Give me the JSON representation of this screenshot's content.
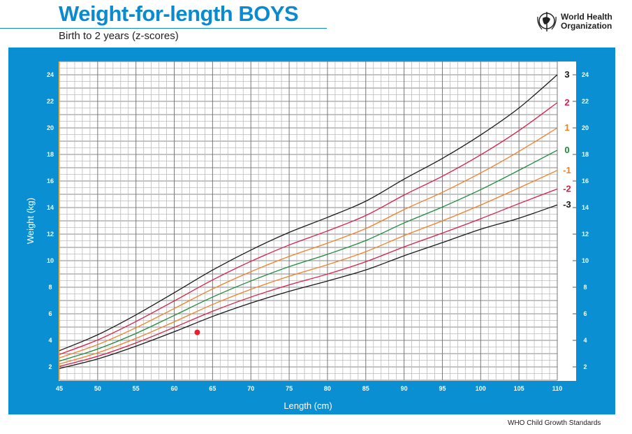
{
  "header": {
    "title": "Weight-for-length BOYS",
    "subtitle": "Birth to 2 years (z-scores)",
    "logo_text": "World Health Organization"
  },
  "footer": "WHO Child Growth Standards",
  "chart_data": {
    "type": "line",
    "xlabel": "Length (cm)",
    "ylabel": "Weight (kg)",
    "xlim": [
      45,
      110
    ],
    "ylim": [
      1,
      25
    ],
    "x_ticks": [
      45,
      50,
      55,
      60,
      65,
      70,
      75,
      80,
      85,
      90,
      95,
      100,
      105,
      110
    ],
    "y_ticks": [
      2,
      4,
      6,
      8,
      10,
      12,
      14,
      16,
      18,
      20,
      22,
      24
    ],
    "grid": true,
    "background": "#0a8fd2",
    "x": [
      45,
      50,
      55,
      60,
      65,
      70,
      75,
      80,
      85,
      90,
      95,
      100,
      105,
      110
    ],
    "series": [
      {
        "name": "3",
        "color": "#1a1a1a",
        "values": [
          3.22,
          4.42,
          5.92,
          7.59,
          9.29,
          10.8,
          12.13,
          13.26,
          14.48,
          16.14,
          17.7,
          19.47,
          21.5,
          24.0
        ]
      },
      {
        "name": "2",
        "color": "#d4204a",
        "values": [
          2.94,
          4.03,
          5.42,
          6.97,
          8.55,
          9.95,
          11.18,
          12.24,
          13.4,
          14.94,
          16.36,
          17.97,
          19.8,
          21.9
        ]
      },
      {
        "name": "1",
        "color": "#f07f2a",
        "values": [
          2.68,
          3.68,
          4.95,
          6.4,
          7.87,
          9.17,
          10.32,
          11.32,
          12.42,
          13.85,
          15.15,
          16.61,
          18.23,
          20.0
        ]
      },
      {
        "name": "0",
        "color": "#1d8a3c",
        "values": [
          2.44,
          3.35,
          4.52,
          5.88,
          7.26,
          8.47,
          9.55,
          10.48,
          11.52,
          12.84,
          14.04,
          15.35,
          16.81,
          18.32
        ]
      },
      {
        "name": "-1",
        "color": "#f07f2a",
        "values": [
          2.22,
          3.06,
          4.15,
          5.4,
          6.7,
          7.84,
          8.83,
          9.7,
          10.68,
          11.89,
          13.0,
          14.19,
          15.48,
          16.8
        ]
      },
      {
        "name": "-2",
        "color": "#d4204a",
        "values": [
          2.04,
          2.8,
          3.81,
          4.98,
          6.19,
          7.26,
          8.18,
          8.99,
          9.92,
          11.04,
          12.08,
          13.16,
          14.3,
          15.4
        ]
      },
      {
        "name": "-3",
        "color": "#1a1a1a",
        "values": [
          1.88,
          2.6,
          3.56,
          4.65,
          5.8,
          6.81,
          7.69,
          8.47,
          9.3,
          10.37,
          11.36,
          12.37,
          13.2,
          14.2
        ]
      }
    ],
    "points": [
      {
        "x": 63,
        "y": 4.6,
        "color": "#e8202a"
      }
    ]
  }
}
